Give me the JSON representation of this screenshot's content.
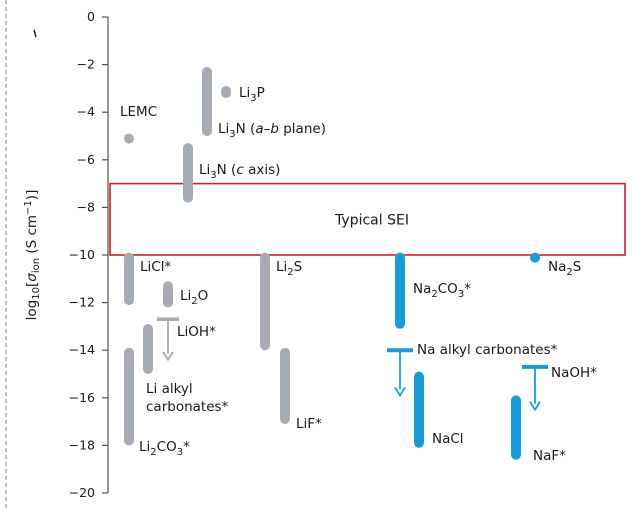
{
  "chart_data": {
    "type": "range-bar",
    "ylabel": "log10[σion (S cm−1)]",
    "ylim": [
      -20,
      0
    ],
    "yticks": [
      0,
      -2,
      -4,
      -6,
      -8,
      -10,
      -12,
      -14,
      -16,
      -18,
      -20
    ],
    "ytick_labels": [
      "0",
      "−2",
      "−4",
      "−6",
      "−8",
      "−10",
      "−12",
      "−14",
      "−16",
      "−18",
      "−20"
    ],
    "band": {
      "label": "Typical SEI",
      "range": [
        -7,
        -10
      ],
      "color": "#cc2229"
    },
    "colors": {
      "lithium": "#a5acb3",
      "sodium": "#1a9ad6"
    },
    "series": [
      {
        "key": "lemc",
        "family": "lithium",
        "label": "LEMC",
        "range": [
          -4.9,
          -5.3
        ]
      },
      {
        "key": "li3p",
        "family": "lithium",
        "label": "Li3P",
        "range": [
          -2.9,
          -3.4
        ]
      },
      {
        "key": "li3n_ab",
        "family": "lithium",
        "label": "Li3N (a–b plane)",
        "range": [
          -2.1,
          -5.0
        ]
      },
      {
        "key": "li3n_c",
        "family": "lithium",
        "label": "Li3N (c axis)",
        "range": [
          -5.3,
          -7.8
        ]
      },
      {
        "key": "licl",
        "family": "lithium",
        "label": "LiCl*",
        "range": [
          -9.9,
          -12.1
        ]
      },
      {
        "key": "li2o",
        "family": "lithium",
        "label": "Li2O",
        "range": [
          -11.1,
          -12.2
        ]
      },
      {
        "key": "lioh",
        "family": "lithium",
        "label": "LiOH*",
        "upper_limit": -12.7,
        "arrow_to": -14.4
      },
      {
        "key": "li_alkyl",
        "family": "lithium",
        "label": "Li alkyl carbonates*",
        "range": [
          -12.9,
          -15.0
        ]
      },
      {
        "key": "li2co3",
        "family": "lithium",
        "label": "Li2CO3*",
        "range": [
          -13.9,
          -18.0
        ]
      },
      {
        "key": "li2s",
        "family": "lithium",
        "label": "Li2S",
        "range": [
          -9.9,
          -14.0
        ]
      },
      {
        "key": "lif",
        "family": "lithium",
        "label": "LiF*",
        "range": [
          -13.9,
          -17.1
        ]
      },
      {
        "key": "na2co3",
        "family": "sodium",
        "label": "Na2CO3*",
        "range": [
          -9.9,
          -13.1
        ]
      },
      {
        "key": "na_alkyl",
        "family": "sodium",
        "label": "Na alkyl carbonates*",
        "upper_limit": -14.0,
        "arrow_to": -15.9
      },
      {
        "key": "nacl",
        "family": "sodium",
        "label": "NaCl",
        "range": [
          -14.9,
          -18.1
        ]
      },
      {
        "key": "na2s",
        "family": "sodium",
        "label": "Na2S",
        "range": [
          -9.9,
          -10.3
        ]
      },
      {
        "key": "naoh",
        "family": "sodium",
        "label": "NaOH*",
        "upper_limit": -14.7,
        "arrow_to": -16.5
      },
      {
        "key": "naf",
        "family": "sodium",
        "label": "NaF*",
        "range": [
          -15.9,
          -18.6
        ]
      }
    ]
  }
}
